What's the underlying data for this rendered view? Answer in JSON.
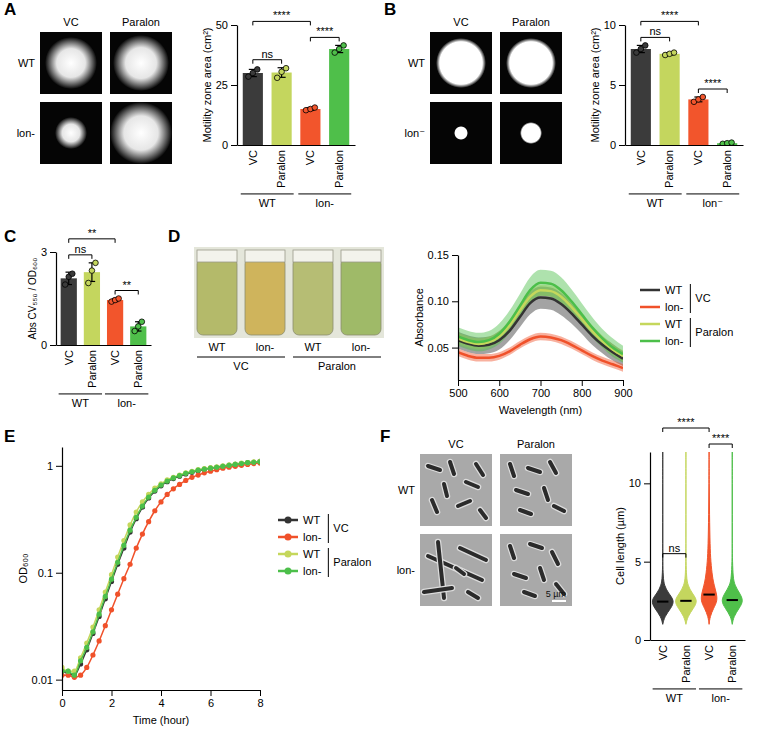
{
  "images": {
    "A": {
      "columns": [
        "VC",
        "Paralon"
      ],
      "rows": [
        "WT",
        "lon-"
      ]
    },
    "B": {
      "columns": [
        "VC",
        "Paralon"
      ],
      "rows": [
        "WT",
        "lon⁻"
      ]
    },
    "D": {
      "labels": [
        "WT",
        "lon-",
        "WT",
        "lon-"
      ],
      "groups": [
        "VC",
        "Paralon"
      ]
    },
    "F": {
      "columns": [
        "VC",
        "Paralon"
      ],
      "rows": [
        "WT",
        "lon-"
      ],
      "scale_bar": "5 µm"
    }
  },
  "chart_data": [
    {
      "panel": "A",
      "type": "bar",
      "ylabel": "Motility zone area (cm²)",
      "categories": [
        "VC",
        "Paralon",
        "VC",
        "Paralon"
      ],
      "groups": [
        "WT",
        "lon-"
      ],
      "values": [
        30,
        30.2,
        15,
        40
      ],
      "errors": [
        1.5,
        2,
        0.6,
        1.5
      ],
      "points": [
        [
          28.5,
          30,
          31.5
        ],
        [
          28,
          30.5,
          32
        ],
        [
          14.5,
          15,
          15.6
        ],
        [
          38.5,
          40,
          41.5
        ]
      ],
      "colors": [
        "#3b3b3b",
        "#c4d65e",
        "#f2552c",
        "#4fbf4a"
      ],
      "ylim": [
        0,
        50
      ],
      "yticks": [
        0,
        25,
        50
      ],
      "annotations": [
        {
          "text": "ns",
          "from": 0,
          "to": 1
        },
        {
          "text": "****",
          "from": 2,
          "to": 3
        },
        {
          "text": "****",
          "from": 0,
          "to": 2
        }
      ]
    },
    {
      "panel": "B",
      "type": "bar",
      "ylabel": "Motility zone area (cm²)",
      "categories": [
        "VC",
        "Paralon",
        "VC",
        "Paralon"
      ],
      "groups": [
        "WT",
        "lon⁻"
      ],
      "values": [
        8.0,
        7.6,
        3.8,
        0.15
      ],
      "errors": [
        0.3,
        0.1,
        0.2,
        0.05
      ],
      "points": [
        [
          7.7,
          8.0,
          8.3
        ],
        [
          7.5,
          7.6,
          7.7
        ],
        [
          3.6,
          3.8,
          4.0
        ],
        [
          0.1,
          0.15,
          0.2
        ]
      ],
      "colors": [
        "#3b3b3b",
        "#c4d65e",
        "#f2552c",
        "#4fbf4a"
      ],
      "ylim": [
        0,
        10
      ],
      "yticks": [
        0,
        5,
        10
      ],
      "annotations": [
        {
          "text": "ns",
          "from": 0,
          "to": 1
        },
        {
          "text": "****",
          "from": 2,
          "to": 3
        },
        {
          "text": "****",
          "from": 0,
          "to": 2
        }
      ]
    },
    {
      "panel": "C",
      "type": "bar",
      "ylabel": "Abs CV₅₅₀ / OD₆₀₀",
      "categories": [
        "VC",
        "Paralon",
        "VC",
        "Paralon"
      ],
      "groups": [
        "WT",
        "lon-"
      ],
      "values": [
        2.15,
        2.35,
        1.45,
        0.6
      ],
      "errors": [
        0.2,
        0.3,
        0.05,
        0.15
      ],
      "points": [
        [
          1.95,
          2.2,
          2.3
        ],
        [
          2.0,
          2.4,
          2.65
        ],
        [
          1.4,
          1.45,
          1.5
        ],
        [
          0.45,
          0.6,
          0.75
        ]
      ],
      "colors": [
        "#3b3b3b",
        "#c4d65e",
        "#f2552c",
        "#4fbf4a"
      ],
      "ylim": [
        0,
        3
      ],
      "yticks": [
        0,
        3
      ],
      "annotations": [
        {
          "text": "ns",
          "from": 0,
          "to": 1
        },
        {
          "text": "**",
          "from": 2,
          "to": 3
        },
        {
          "text": "**",
          "from": 0,
          "to": 2
        }
      ]
    },
    {
      "panel": "D",
      "type": "line",
      "xlabel": "Wavelength (nm)",
      "ylabel": "Absorbance",
      "x": [
        500,
        525,
        550,
        575,
        600,
        625,
        650,
        675,
        700,
        725,
        750,
        775,
        800,
        825,
        850,
        875,
        900
      ],
      "xlim": [
        500,
        900
      ],
      "xticks": [
        500,
        600,
        700,
        800,
        900
      ],
      "ylim": [
        0.015,
        0.15
      ],
      "yticks": [
        0.05,
        {
          "value": 0.1,
          "label": "0.10"
        },
        0.15
      ],
      "legend": "right",
      "series": [
        {
          "name": "WT",
          "group": "VC",
          "color": "#333333",
          "values": [
            0.058,
            0.054,
            0.052,
            0.053,
            0.058,
            0.068,
            0.083,
            0.098,
            0.104,
            0.103,
            0.097,
            0.087,
            0.075,
            0.063,
            0.053,
            0.045,
            0.038
          ],
          "errors": [
            0.009,
            0.009,
            0.009,
            0.009,
            0.01,
            0.01,
            0.011,
            0.012,
            0.012,
            0.012,
            0.012,
            0.011,
            0.01,
            0.01,
            0.009,
            0.009,
            0.008
          ]
        },
        {
          "name": "lon-",
          "group": "VC",
          "color": "#f0512a",
          "values": [
            0.045,
            0.041,
            0.039,
            0.039,
            0.041,
            0.046,
            0.053,
            0.059,
            0.062,
            0.061,
            0.058,
            0.053,
            0.047,
            0.041,
            0.036,
            0.032,
            0.028
          ],
          "errors": [
            0.004,
            0.004,
            0.004,
            0.004,
            0.004,
            0.004,
            0.004,
            0.004,
            0.004,
            0.004,
            0.004,
            0.004,
            0.004,
            0.004,
            0.004,
            0.004,
            0.004
          ]
        },
        {
          "name": "WT",
          "group": "Paralon",
          "color": "#c5d75c",
          "values": [
            0.06,
            0.056,
            0.054,
            0.056,
            0.062,
            0.074,
            0.09,
            0.105,
            0.112,
            0.111,
            0.105,
            0.094,
            0.081,
            0.068,
            0.057,
            0.048,
            0.041
          ],
          "errors": [
            0.006,
            0.006,
            0.006,
            0.006,
            0.006,
            0.006,
            0.006,
            0.006,
            0.006,
            0.006,
            0.006,
            0.006,
            0.006,
            0.006,
            0.006,
            0.006,
            0.006
          ]
        },
        {
          "name": "lon-",
          "group": "Paralon",
          "color": "#4cbf4a",
          "values": [
            0.062,
            0.058,
            0.056,
            0.058,
            0.065,
            0.078,
            0.095,
            0.112,
            0.12,
            0.119,
            0.112,
            0.1,
            0.086,
            0.072,
            0.06,
            0.05,
            0.043
          ],
          "errors": [
            0.01,
            0.01,
            0.01,
            0.01,
            0.011,
            0.012,
            0.013,
            0.014,
            0.014,
            0.014,
            0.014,
            0.013,
            0.012,
            0.011,
            0.01,
            0.01,
            0.009
          ]
        }
      ]
    },
    {
      "panel": "E",
      "type": "line",
      "marker": "circle",
      "log": "y",
      "xlabel": "Time (hour)",
      "ylabel": "OD₆₀₀",
      "x": [
        0,
        0.25,
        0.5,
        0.75,
        1,
        1.25,
        1.5,
        1.75,
        2,
        2.25,
        2.5,
        2.75,
        3,
        3.25,
        3.5,
        3.75,
        4,
        4.25,
        4.5,
        4.75,
        5,
        5.25,
        5.5,
        5.75,
        6,
        6.25,
        6.5,
        6.75,
        7,
        7.25,
        7.5,
        7.75,
        8
      ],
      "xlim": [
        0,
        8
      ],
      "xticks": [
        0,
        2,
        4,
        6,
        8
      ],
      "ylim": [
        0.008,
        1.5
      ],
      "yticks": [
        0.01,
        0.1,
        1
      ],
      "legend": "right",
      "series": [
        {
          "name": "WT",
          "group": "VC",
          "color": "#333333",
          "values": [
            0.012,
            0.0115,
            0.011,
            0.014,
            0.019,
            0.027,
            0.039,
            0.057,
            0.083,
            0.12,
            0.17,
            0.24,
            0.32,
            0.41,
            0.5,
            0.58,
            0.65,
            0.71,
            0.76,
            0.8,
            0.84,
            0.87,
            0.9,
            0.93,
            0.95,
            0.97,
            0.99,
            1.01,
            1.03,
            1.05,
            1.07,
            1.08,
            1.1
          ]
        },
        {
          "name": "lon-",
          "group": "VC",
          "color": "#f0512a",
          "values": [
            0.011,
            0.011,
            0.0105,
            0.011,
            0.013,
            0.017,
            0.023,
            0.032,
            0.045,
            0.063,
            0.088,
            0.12,
            0.17,
            0.23,
            0.3,
            0.38,
            0.46,
            0.54,
            0.61,
            0.67,
            0.73,
            0.78,
            0.82,
            0.86,
            0.89,
            0.92,
            0.95,
            0.97,
            0.99,
            1.01,
            1.03,
            1.05,
            1.06
          ]
        },
        {
          "name": "WT",
          "group": "Paralon",
          "color": "#c5d75c",
          "values": [
            0.013,
            0.012,
            0.012,
            0.016,
            0.022,
            0.031,
            0.045,
            0.066,
            0.096,
            0.14,
            0.2,
            0.28,
            0.37,
            0.46,
            0.54,
            0.62,
            0.68,
            0.74,
            0.78,
            0.82,
            0.86,
            0.89,
            0.92,
            0.94,
            0.96,
            0.98,
            1.0,
            1.02,
            1.04,
            1.06,
            1.07,
            1.09,
            1.1
          ]
        },
        {
          "name": "lon-",
          "group": "Paralon",
          "color": "#4cbf4a",
          "values": [
            0.012,
            0.012,
            0.011,
            0.015,
            0.02,
            0.028,
            0.041,
            0.06,
            0.087,
            0.125,
            0.18,
            0.25,
            0.33,
            0.42,
            0.51,
            0.59,
            0.66,
            0.72,
            0.77,
            0.81,
            0.85,
            0.88,
            0.91,
            0.93,
            0.95,
            0.97,
            0.99,
            1.01,
            1.03,
            1.05,
            1.07,
            1.08,
            1.09
          ]
        }
      ]
    },
    {
      "panel": "F",
      "type": "violin",
      "ylabel": "Cell length (µm)",
      "categories": [
        "VC",
        "Paralon",
        "VC",
        "Paralon"
      ],
      "groups": [
        "WT",
        "lon-"
      ],
      "length_grid": [
        1,
        1.5,
        2,
        2.5,
        3,
        3.5,
        4,
        5,
        6,
        8,
        10,
        12
      ],
      "densities": [
        [
          0,
          0.15,
          0.65,
          1.0,
          0.45,
          0.12,
          0.04,
          0,
          0,
          0,
          0,
          0
        ],
        [
          0,
          0.15,
          0.6,
          1.0,
          0.5,
          0.15,
          0.05,
          0.01,
          0,
          0,
          0,
          0
        ],
        [
          0,
          0.08,
          0.35,
          0.7,
          0.6,
          0.42,
          0.28,
          0.14,
          0.08,
          0.035,
          0.015,
          0.005
        ],
        [
          0,
          0.12,
          0.55,
          0.95,
          0.6,
          0.2,
          0.07,
          0.02,
          0,
          0,
          0,
          0
        ]
      ],
      "values": [
        2.45,
        2.5,
        2.9,
        2.55
      ],
      "colors": [
        "#3b3b3b",
        "#c4d65e",
        "#f2552c",
        "#4fbf4a"
      ],
      "ylim": [
        0,
        12
      ],
      "yticks": [
        0,
        5,
        10
      ],
      "annotations": [
        {
          "text": "ns",
          "from": 0,
          "to": 1
        },
        {
          "text": "****",
          "from": 2,
          "to": 3
        },
        {
          "text": "****",
          "from": 0,
          "to": 2
        }
      ]
    }
  ]
}
